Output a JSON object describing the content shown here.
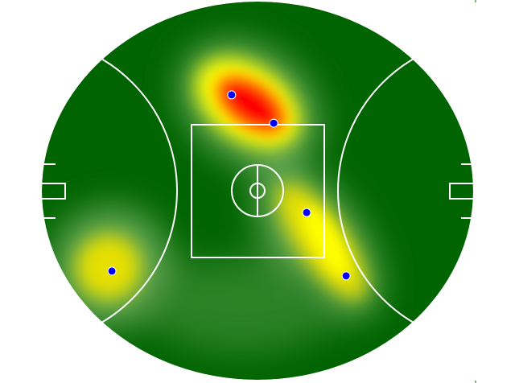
{
  "chart_data": {
    "type": "heatmap",
    "title": "",
    "field": "AFL oval",
    "colors": {
      "background": "#006400",
      "low": "#6aa84f",
      "mid": "#ffff00",
      "high": "#ff0000",
      "point_fill": "#0000ff",
      "point_stroke": "#ffffff",
      "lines": "#ffffff"
    },
    "field_size_m": [
      165,
      135
    ],
    "points_m": [
      {
        "x": -9.9,
        "y": -34.2
      },
      {
        "x": 6.2,
        "y": -24.1
      },
      {
        "x": 18.8,
        "y": 7.8
      },
      {
        "x": 33.9,
        "y": 30.4
      },
      {
        "x": -55.7,
        "y": 28.7
      }
    ]
  }
}
